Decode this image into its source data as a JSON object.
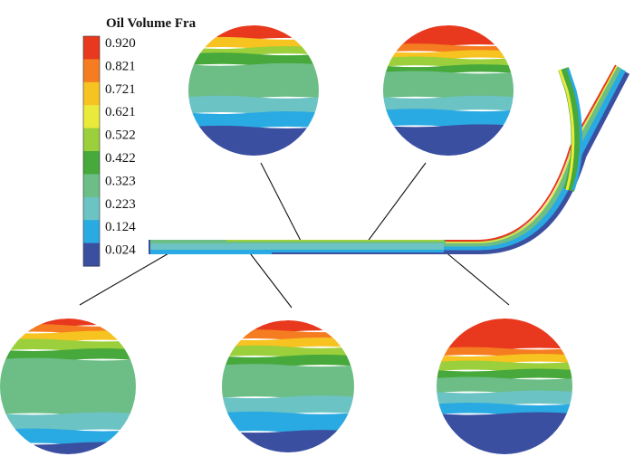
{
  "legend": {
    "title": "Oil Volume Fra",
    "values": [
      "0.920",
      "0.821",
      "0.721",
      "0.621",
      "0.522",
      "0.422",
      "0.323",
      "0.223",
      "0.124",
      "0.024"
    ],
    "colors": [
      "#e8381d",
      "#f57c21",
      "#f6c321",
      "#eaea3a",
      "#9bcf3c",
      "#47a83b",
      "#6cbd86",
      "#6cc3c4",
      "#2aaae2",
      "#3b4fa1"
    ]
  },
  "cross_sections": [
    {
      "id": "top-left",
      "bands": [
        [
          0.0,
          0.1,
          0
        ],
        [
          0.1,
          0.17,
          2
        ],
        [
          0.17,
          0.22,
          4
        ],
        [
          0.22,
          0.3,
          5
        ],
        [
          0.3,
          0.55,
          6
        ],
        [
          0.55,
          0.67,
          7
        ],
        [
          0.67,
          0.78,
          8
        ],
        [
          0.78,
          1.0,
          9
        ]
      ]
    },
    {
      "id": "top-right",
      "bands": [
        [
          0.0,
          0.15,
          0
        ],
        [
          0.15,
          0.2,
          1
        ],
        [
          0.2,
          0.25,
          2
        ],
        [
          0.25,
          0.31,
          4
        ],
        [
          0.31,
          0.36,
          5
        ],
        [
          0.36,
          0.55,
          6
        ],
        [
          0.55,
          0.65,
          7
        ],
        [
          0.65,
          0.77,
          8
        ],
        [
          0.77,
          1.0,
          9
        ]
      ]
    },
    {
      "id": "bottom-left",
      "bands": [
        [
          0.0,
          0.05,
          0
        ],
        [
          0.05,
          0.1,
          1
        ],
        [
          0.1,
          0.16,
          2
        ],
        [
          0.16,
          0.23,
          4
        ],
        [
          0.23,
          0.3,
          5
        ],
        [
          0.3,
          0.7,
          6
        ],
        [
          0.7,
          0.82,
          7
        ],
        [
          0.82,
          0.92,
          8
        ],
        [
          0.92,
          1.0,
          9
        ]
      ]
    },
    {
      "id": "bottom-middle",
      "bands": [
        [
          0.0,
          0.08,
          0
        ],
        [
          0.08,
          0.14,
          1
        ],
        [
          0.14,
          0.2,
          2
        ],
        [
          0.2,
          0.27,
          4
        ],
        [
          0.27,
          0.34,
          5
        ],
        [
          0.34,
          0.58,
          6
        ],
        [
          0.58,
          0.7,
          7
        ],
        [
          0.7,
          0.84,
          8
        ],
        [
          0.84,
          1.0,
          9
        ]
      ]
    },
    {
      "id": "bottom-right",
      "bands": [
        [
          0.0,
          0.22,
          0
        ],
        [
          0.22,
          0.27,
          1
        ],
        [
          0.27,
          0.32,
          2
        ],
        [
          0.32,
          0.38,
          4
        ],
        [
          0.38,
          0.44,
          5
        ],
        [
          0.44,
          0.54,
          6
        ],
        [
          0.54,
          0.63,
          7
        ],
        [
          0.63,
          0.7,
          8
        ],
        [
          0.7,
          1.0,
          9
        ]
      ]
    }
  ]
}
